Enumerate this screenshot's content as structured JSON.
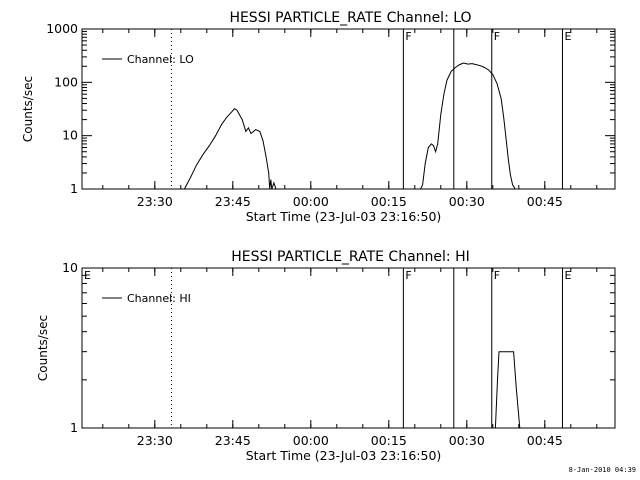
{
  "chart_data": [
    {
      "type": "line",
      "title": "HESSI PARTICLE_RATE Channel: LO",
      "xlabel": "Start Time (23-Jul-03 23:16:50)",
      "ylabel": "Counts/sec",
      "y_scale": "log",
      "ylim": [
        1,
        1000
      ],
      "y_ticks": [
        1,
        10,
        100,
        1000
      ],
      "y_tick_labels": [
        "1",
        "10",
        "100",
        "1000"
      ],
      "x_ticks_min": [
        14,
        29,
        44,
        59,
        74,
        89
      ],
      "x_tick_labels": [
        "23:30",
        "23:45",
        "00:00",
        "00:15",
        "00:30",
        "00:45"
      ],
      "xlim_min": [
        0,
        102.5
      ],
      "legend": "top-left",
      "grid": false,
      "series": [
        {
          "name": "Channel: LO",
          "x_min": [
            19.7,
            20.8,
            22.0,
            23.3,
            24.5,
            25.7,
            26.8,
            27.8,
            28.8,
            29.3,
            29.8,
            30.8,
            31.5,
            32.0,
            32.5,
            33.4,
            34.2,
            34.8,
            35.4,
            35.9,
            36.1,
            36.3,
            36.5,
            36.9,
            37.3
          ],
          "y": [
            1,
            1.6,
            2.8,
            4.5,
            6.5,
            10,
            16,
            22,
            28,
            32,
            30,
            20,
            12,
            14,
            11,
            13,
            12,
            8,
            4,
            2,
            1,
            1.5,
            1,
            1.3,
            1
          ],
          "x2_min": [
            65.1,
            65.5,
            66.0,
            66.6,
            67.2,
            67.6,
            68.0,
            68.4,
            69.0,
            69.6,
            70.2,
            71.0,
            71.8,
            72.6,
            73.4,
            74.2,
            75.0,
            75.8,
            76.6,
            77.4,
            78.2,
            79.0,
            79.8,
            80.6,
            81.1,
            81.6,
            82.0,
            82.4,
            82.8,
            83.3
          ],
          "y2": [
            1,
            1.2,
            3,
            6,
            7,
            6.5,
            5,
            7,
            25,
            60,
            110,
            160,
            190,
            215,
            230,
            220,
            225,
            215,
            205,
            190,
            170,
            140,
            95,
            50,
            22,
            8,
            3.5,
            1.8,
            1.2,
            1
          ]
        }
      ],
      "markers": [
        {
          "label": "",
          "style": "dotted",
          "x_min": 17.2
        },
        {
          "label": "F",
          "style": "solid",
          "x_min": 61.8
        },
        {
          "label": "",
          "style": "solid",
          "x_min": 71.5
        },
        {
          "label": "F",
          "style": "solid",
          "x_min": 78.8
        },
        {
          "label": "E",
          "style": "solid",
          "x_min": 92.4
        },
        {
          "label": "",
          "style": "dotted",
          "x_min": 109.3
        }
      ]
    },
    {
      "type": "line",
      "title": "HESSI PARTICLE_RATE Channel: HI",
      "xlabel": "Start Time (23-Jul-03 23:16:50)",
      "ylabel": "Counts/sec",
      "y_scale": "log",
      "ylim": [
        1,
        10
      ],
      "y_ticks": [
        1,
        10
      ],
      "y_tick_labels": [
        "1",
        "10"
      ],
      "x_ticks_min": [
        14,
        29,
        44,
        59,
        74,
        89
      ],
      "x_tick_labels": [
        "23:30",
        "23:45",
        "00:00",
        "00:15",
        "00:30",
        "00:45"
      ],
      "xlim_min": [
        0,
        102.5
      ],
      "legend": "top-left",
      "grid": false,
      "series": [
        {
          "name": "Channel: HI",
          "x_min": [
            79.5,
            79.9,
            80.2,
            83.0,
            83.5,
            84.2
          ],
          "y": [
            1,
            2,
            3,
            3,
            1.8,
            1
          ]
        }
      ],
      "markers": [
        {
          "label": "E",
          "style": "solid",
          "x_min": 0
        },
        {
          "label": "",
          "style": "dotted",
          "x_min": 17.2
        },
        {
          "label": "F",
          "style": "solid",
          "x_min": 61.8
        },
        {
          "label": "",
          "style": "solid",
          "x_min": 71.5
        },
        {
          "label": "F",
          "style": "solid",
          "x_min": 78.8
        },
        {
          "label": "E",
          "style": "solid",
          "x_min": 92.4
        },
        {
          "label": "",
          "style": "dotted",
          "x_min": 109.3
        }
      ]
    }
  ],
  "footer": {
    "date": "8-Jan-2010 04:39"
  }
}
